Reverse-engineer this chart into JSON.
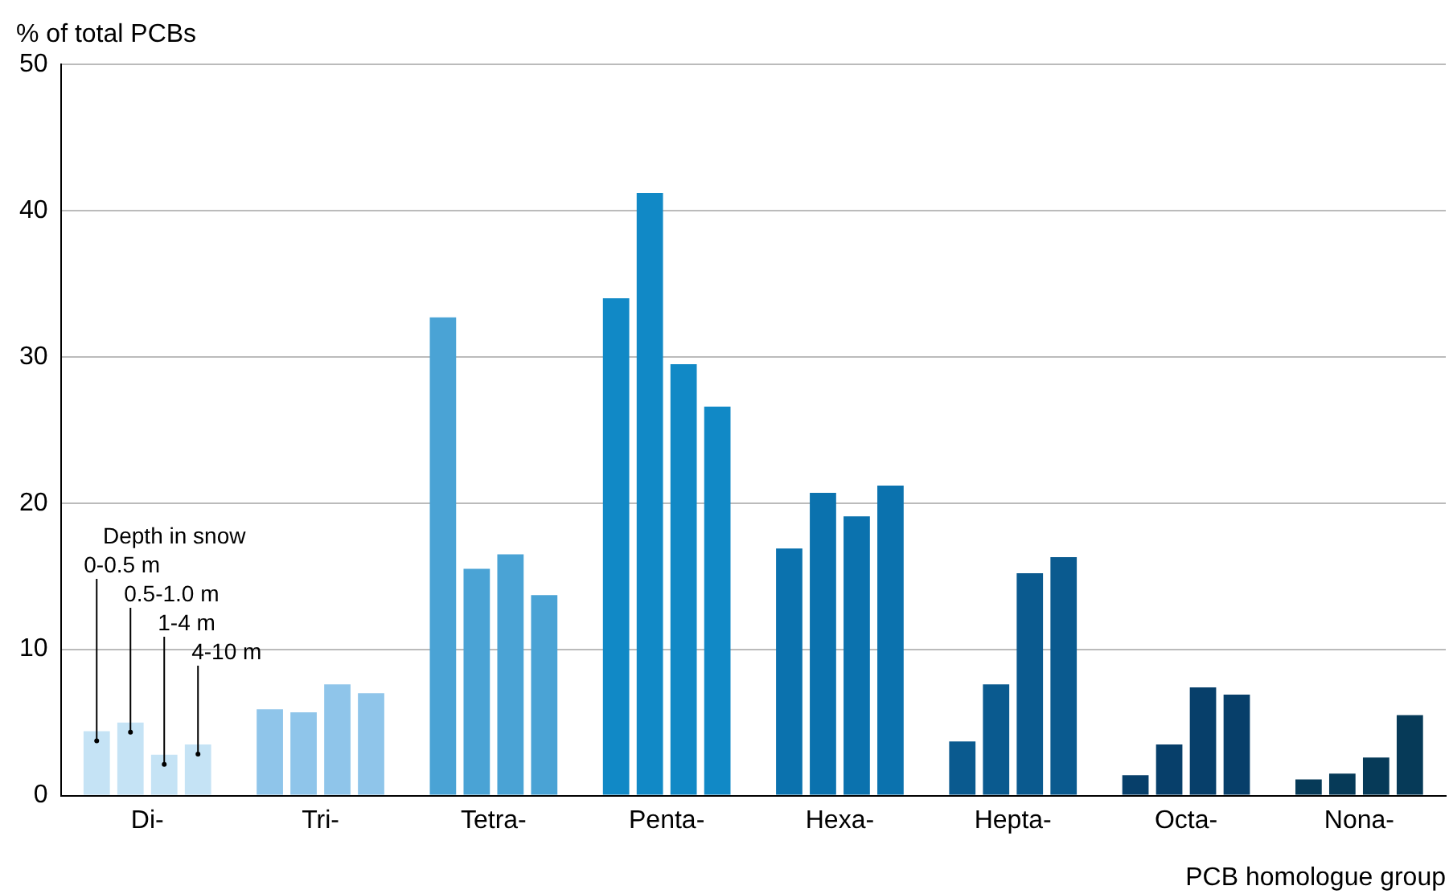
{
  "chart_data": {
    "type": "bar",
    "ylabel": "% of total PCBs",
    "xlabel": "PCB homologue group",
    "legend_title": "Depth in snow",
    "categories": [
      "Di-",
      "Tri-",
      "Tetra-",
      "Penta-",
      "Hexa-",
      "Hepta-",
      "Octa-",
      "Nona-"
    ],
    "series": [
      {
        "name": "0-0.5 m",
        "colors": [
          "#c5e3f5",
          "#8fc5ea",
          "#4aa3d5",
          "#1189c6",
          "#0b72ae",
          "#0a5a8f",
          "#073f6a",
          "#063a58"
        ],
        "values": [
          4.4,
          5.9,
          32.7,
          34.0,
          16.9,
          3.7,
          1.4,
          1.1
        ]
      },
      {
        "name": "0.5-1.0 m",
        "colors": [
          "#c5e3f5",
          "#8fc5ea",
          "#4aa3d5",
          "#1189c6",
          "#0b72ae",
          "#0a5a8f",
          "#073f6a",
          "#063a58"
        ],
        "values": [
          5.0,
          5.7,
          15.5,
          41.2,
          20.7,
          7.6,
          3.5,
          1.5
        ]
      },
      {
        "name": "1-4 m",
        "colors": [
          "#c5e3f5",
          "#8fc5ea",
          "#4aa3d5",
          "#1189c6",
          "#0b72ae",
          "#0a5a8f",
          "#073f6a",
          "#063a58"
        ],
        "values": [
          2.8,
          7.6,
          16.5,
          29.5,
          19.1,
          15.2,
          7.4,
          2.6
        ]
      },
      {
        "name": "4-10 m",
        "colors": [
          "#c5e3f5",
          "#8fc5ea",
          "#4aa3d5",
          "#1189c6",
          "#0b72ae",
          "#0a5a8f",
          "#073f6a",
          "#063a58"
        ],
        "values": [
          3.5,
          7.0,
          13.7,
          26.6,
          21.2,
          16.3,
          6.9,
          5.5
        ]
      }
    ],
    "ylim": [
      0,
      50
    ],
    "yticks": [
      0,
      10,
      20,
      30,
      40,
      50
    ],
    "grid": "y",
    "legend": false
  }
}
